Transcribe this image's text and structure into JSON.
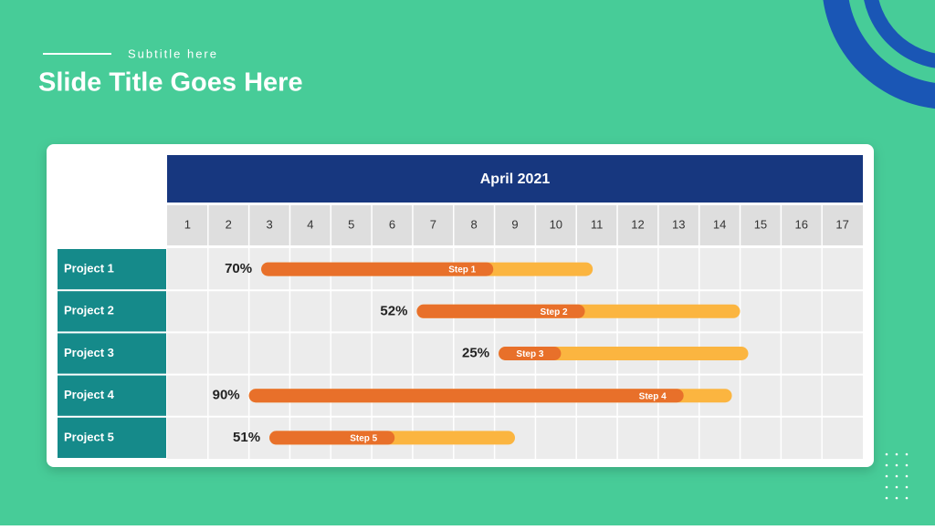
{
  "chart_data": {
    "type": "gantt",
    "title": "Slide Title Goes Here",
    "subtitle": "Subtitle here",
    "header": "April 2021",
    "xlim": [
      1,
      18
    ],
    "xticks": [
      1,
      2,
      3,
      4,
      5,
      6,
      7,
      8,
      9,
      10,
      11,
      12,
      13,
      14,
      15,
      16,
      17
    ],
    "done_color": "#e8702a",
    "remaining_color": "#fbb540",
    "tasks": [
      {
        "name": "Project 1",
        "step": "Step 1",
        "start": 3.3,
        "end": 11.4,
        "progress": 70,
        "value_label": "70%"
      },
      {
        "name": "Project 2",
        "step": "Step 2",
        "start": 7.1,
        "end": 15.0,
        "progress": 52,
        "value_label": "52%"
      },
      {
        "name": "Project 3",
        "step": "Step 3",
        "start": 9.1,
        "end": 15.2,
        "progress": 25,
        "value_label": "25%"
      },
      {
        "name": "Project 4",
        "step": "Step 4",
        "start": 3.0,
        "end": 14.8,
        "progress": 90,
        "value_label": "90%"
      },
      {
        "name": "Project 5",
        "step": "Step 5",
        "start": 3.5,
        "end": 9.5,
        "progress": 51,
        "value_label": "51%"
      }
    ]
  }
}
